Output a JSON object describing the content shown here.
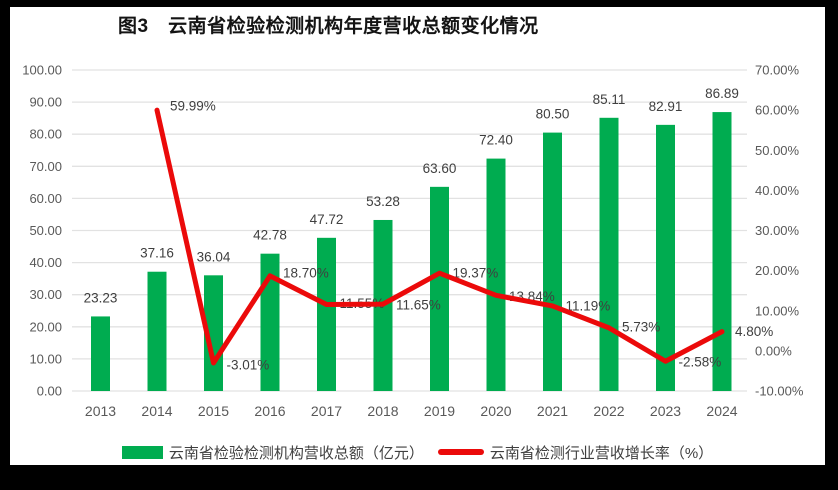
{
  "chart_data": {
    "type": "combo-bar-line",
    "title": "图3　云南省检验检测机构年度营收总额变化情况",
    "categories": [
      "2013",
      "2014",
      "2015",
      "2016",
      "2017",
      "2018",
      "2019",
      "2020",
      "2021",
      "2022",
      "2023",
      "2024"
    ],
    "series": [
      {
        "name": "云南省检验检测机构营收总额（亿元）",
        "type": "bar",
        "axis": "left",
        "values": [
          23.23,
          37.16,
          36.04,
          42.78,
          47.72,
          53.28,
          63.6,
          72.4,
          80.5,
          85.11,
          82.91,
          86.89
        ],
        "labels": [
          "23.23",
          "37.16",
          "36.04",
          "42.78",
          "47.72",
          "53.28",
          "63.60",
          "72.40",
          "80.50",
          "85.11",
          "82.91",
          "86.89"
        ]
      },
      {
        "name": "云南省检测行业营收增长率（%）",
        "type": "line",
        "axis": "right",
        "start_index": 1,
        "values": [
          59.99,
          -3.01,
          18.7,
          11.55,
          11.65,
          19.37,
          13.84,
          11.19,
          5.73,
          -2.58,
          4.8
        ],
        "labels": [
          "59.99%",
          "-3.01%",
          "18.70%",
          "11.55%",
          "11.65%",
          "19.37%",
          "13.84%",
          "11.19%",
          "5.73%",
          "-2.58%",
          "4.80%"
        ]
      }
    ],
    "left_axis": {
      "min": 0,
      "max": 100,
      "step": 10,
      "tick_labels": [
        "100.00",
        "90.00",
        "80.00",
        "70.00",
        "60.00",
        "50.00",
        "40.00",
        "30.00",
        "20.00",
        "10.00",
        "0.00"
      ]
    },
    "right_axis": {
      "min": -10,
      "max": 70,
      "step": 10,
      "tick_labels": [
        "70.00%",
        "60.00%",
        "50.00%",
        "40.00%",
        "30.00%",
        "20.00%",
        "10.00%",
        "0.00%",
        "-10.00%"
      ]
    },
    "grid": true,
    "legend_position": "bottom",
    "colors": {
      "bar": "#00AC50",
      "line": "#EB0A0A",
      "axis_text": "#595959",
      "data_label": "#3F3F3F",
      "gridline": "#E2E2E2",
      "background": "#FFFFFF",
      "frame": "#000000"
    }
  }
}
